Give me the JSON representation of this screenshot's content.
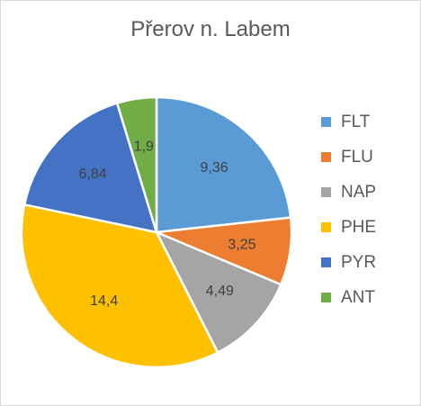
{
  "chart_data": {
    "type": "pie",
    "title": "Přerov n. Labem",
    "categories": [
      "FLT",
      "FLU",
      "NAP",
      "PHE",
      "PYR",
      "ANT"
    ],
    "values": [
      9.36,
      3.25,
      4.49,
      14.4,
      6.84,
      1.9
    ],
    "value_labels": [
      "9,36",
      "3,25",
      "4,49",
      "14,4",
      "6,84",
      "1,9"
    ],
    "colors": [
      "#5b9bd5",
      "#ed7d31",
      "#a5a5a5",
      "#ffc000",
      "#4472c4",
      "#70ad47"
    ],
    "legend_position": "right"
  }
}
